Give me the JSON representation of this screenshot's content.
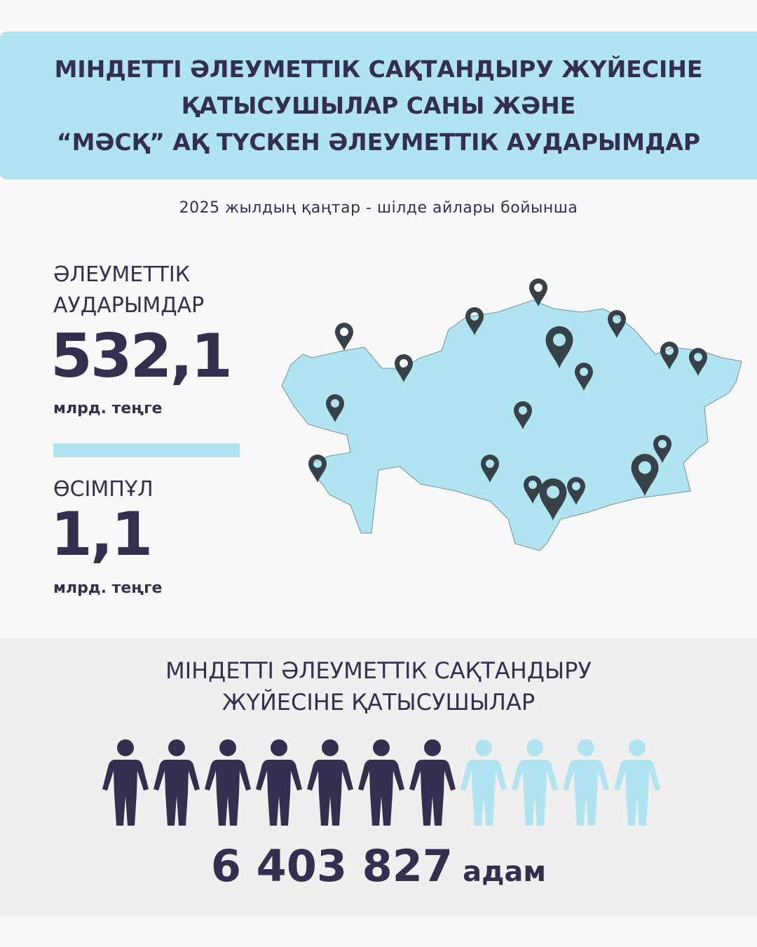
{
  "header": {
    "title_lines": [
      "МІНДЕТТІ ӘЛЕУМЕТТІК САҚТАНДЫРУ ЖҮЙЕСІНЕ",
      "ҚАТЫСУШЫЛАР САНЫ ЖӘНЕ",
      "“МӘСҚ” АҚ ТҮСКЕН ӘЛЕУМЕТТІК АУДАРЫМДАР"
    ],
    "subtitle": "2025 жылдың қаңтар - шілде айлары бойынша"
  },
  "stats": {
    "transfers_label_1": "ӘЛЕУМЕТТІК",
    "transfers_label_2": "АУДАРЫМДАР",
    "transfers_value": "532,1",
    "transfers_unit": "млрд. теңге",
    "growth_label": "ӨСІМПҰЛ",
    "growth_value": "1,1",
    "growth_unit": "млрд. теңге"
  },
  "participants": {
    "title_line_1": "МІНДЕТТІ ӘЛЕУМЕТТІК САҚТАНДЫРУ",
    "title_line_2": "ЖҮЙЕСІНЕ ҚАТЫСУШЫЛАР",
    "count": "6 403 827",
    "unit": "адам",
    "icons_filled": 7,
    "icons_total": 11
  },
  "map": {
    "icon": "kazakhstan-map",
    "pin_icon": "map-pin-icon"
  },
  "colors": {
    "dark": "#352f4f",
    "accent": "#b0e4f1",
    "pin": "#364248"
  }
}
